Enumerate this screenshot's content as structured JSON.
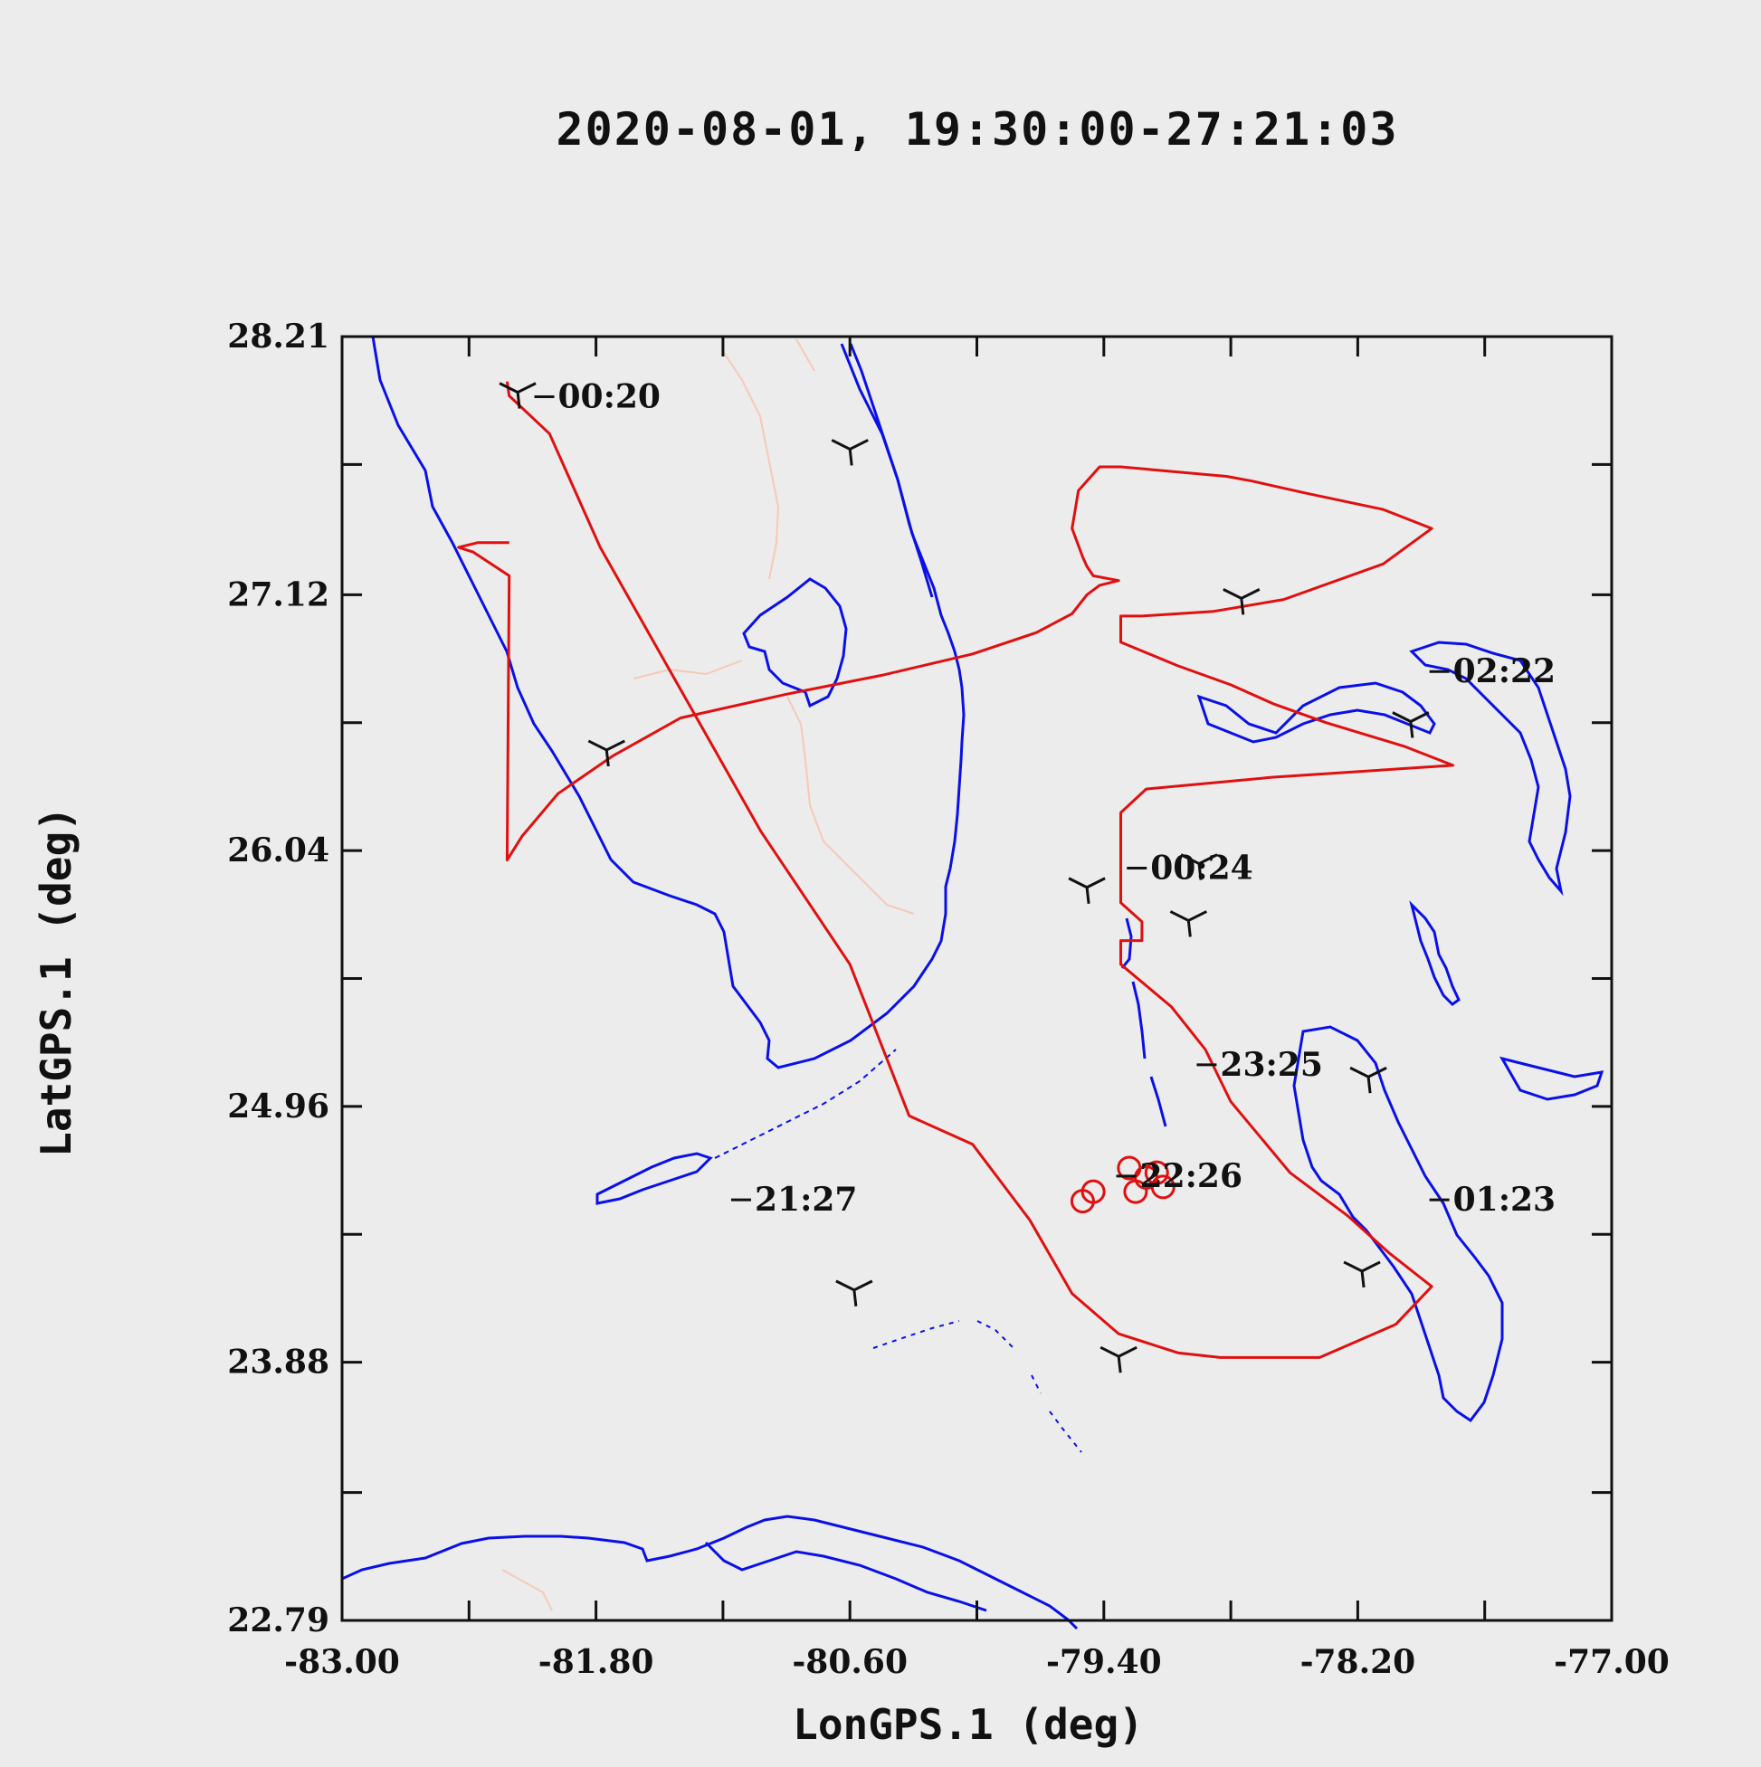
{
  "chart_data": {
    "type": "line",
    "title": "2020-08-01, 19:30:00-27:21:03",
    "xlabel": "LonGPS.1 (deg)",
    "ylabel": "LatGPS.1 (deg)",
    "xlim": [
      -83.0,
      -77.0
    ],
    "ylim": [
      22.79,
      28.21
    ],
    "x_ticks": [
      -83.0,
      -82.4,
      -81.8,
      -81.2,
      -80.6,
      -80.0,
      -79.4,
      -78.8,
      -78.2,
      -77.6,
      -77.0
    ],
    "x_tick_labels": [
      "-83.00",
      "",
      "-81.80",
      "",
      "-80.60",
      "",
      "-79.40",
      "",
      "-78.20",
      "",
      "-77.00"
    ],
    "y_ticks": [
      22.79,
      23.33,
      23.88,
      24.42,
      24.96,
      25.5,
      26.04,
      26.58,
      27.12,
      27.67,
      28.21
    ],
    "y_tick_labels": [
      "22.79",
      "",
      "23.88",
      "",
      "24.96",
      "",
      "26.04",
      "",
      "27.12",
      "",
      "28.21"
    ],
    "grid": false,
    "colors": {
      "flight_track": "#e01010",
      "coastline": "#0a10e6",
      "borders": "#f5c9b8",
      "wind_barbs": "#111111"
    },
    "series": [
      {
        "x": [
          -82.22,
          -82.21,
          -82.02,
          -81.78,
          -81.4,
          -81.02,
          -80.6,
          -80.32,
          -80.02,
          -79.75,
          -79.55,
          -79.33,
          -79.05,
          -78.85,
          -78.6,
          -78.38,
          -78.02,
          -77.85,
          -78.05,
          -78.25,
          -78.52,
          -78.8,
          -78.92,
          -79.08,
          -79.32,
          -79.32,
          -79.22,
          -79.22,
          -79.32,
          -79.32,
          -79.32,
          -79.2,
          -78.6,
          -77.75,
          -77.98,
          -78.35,
          -78.6,
          -78.8,
          -79.05,
          -79.32,
          -79.32,
          -79.32,
          -79.22,
          -78.88,
          -78.55,
          -78.08,
          -77.85,
          -78.08,
          -78.45,
          -78.7,
          -78.82,
          -79.32,
          -79.42,
          -79.52,
          -79.55,
          -79.5,
          -79.48,
          -79.45,
          -79.33,
          -79.42,
          -79.48,
          -79.55,
          -79.72,
          -80.02,
          -80.45,
          -80.9,
          -81.4,
          -81.72,
          -81.98,
          -82.15,
          -82.22,
          -82.21,
          -82.38,
          -82.45,
          -82.36,
          -82.21
        ],
        "y": [
          28.02,
          27.96,
          27.8,
          27.32,
          26.72,
          26.12,
          25.56,
          24.92,
          24.8,
          24.48,
          24.17,
          24.0,
          23.92,
          23.9,
          23.9,
          23.9,
          24.04,
          24.2,
          24.34,
          24.5,
          24.68,
          24.98,
          25.2,
          25.38,
          25.56,
          25.66,
          25.66,
          25.74,
          25.82,
          26.0,
          26.2,
          26.3,
          26.35,
          26.4,
          26.48,
          26.58,
          26.66,
          26.74,
          26.82,
          26.92,
          27.0,
          27.03,
          27.03,
          27.05,
          27.1,
          27.25,
          27.4,
          27.48,
          27.55,
          27.6,
          27.62,
          27.66,
          27.66,
          27.56,
          27.4,
          27.28,
          27.24,
          27.2,
          27.18,
          27.16,
          27.12,
          27.04,
          26.96,
          26.87,
          26.78,
          26.7,
          26.6,
          26.44,
          26.28,
          26.1,
          26.0,
          27.2,
          27.3,
          27.32,
          27.34,
          27.34
        ]
      }
    ],
    "time_labels": [
      {
        "text": "00:20",
        "lon": -81.98,
        "lat": 27.91
      },
      {
        "text": "02:22",
        "lon": -77.75,
        "lat": 26.75
      },
      {
        "text": "00:24",
        "lon": -79.18,
        "lat": 25.92
      },
      {
        "text": "23:25",
        "lon": -78.85,
        "lat": 25.09
      },
      {
        "text": "22:26",
        "lon": -79.23,
        "lat": 24.62
      },
      {
        "text": "21:27",
        "lon": -81.05,
        "lat": 24.52
      },
      {
        "text": "01:23",
        "lon": -77.75,
        "lat": 24.52
      }
    ]
  }
}
